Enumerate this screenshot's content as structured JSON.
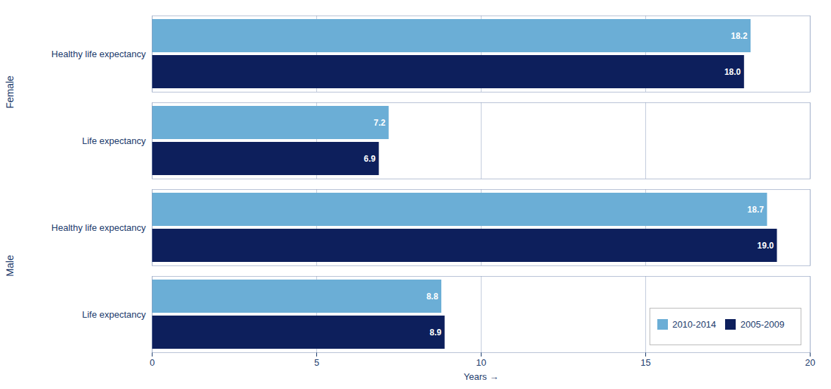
{
  "chart_data": {
    "type": "bar",
    "orientation": "horizontal",
    "categories": [
      "Healthy life expectancy",
      "Life expectancy",
      "Healthy life expectancy",
      "Life expectancy"
    ],
    "annotations": [
      "Female",
      "Male"
    ],
    "series": [
      {
        "name": "2010-2014",
        "color": "#6baed6",
        "values": [
          18.2,
          7.2,
          18.7,
          8.8
        ]
      },
      {
        "name": "2005-2009",
        "color": "#0d1f5c",
        "values": [
          18.0,
          6.9,
          19.0,
          8.9
        ],
        "value_labels": [
          "18.0",
          "6.9",
          "19.0",
          "8.9"
        ]
      }
    ],
    "xlabel": "Years",
    "xlim": [
      0,
      20
    ],
    "xticks": [
      0,
      5,
      10,
      15,
      20
    ],
    "grid": true,
    "legend": "lower right",
    "data_labels": true
  }
}
